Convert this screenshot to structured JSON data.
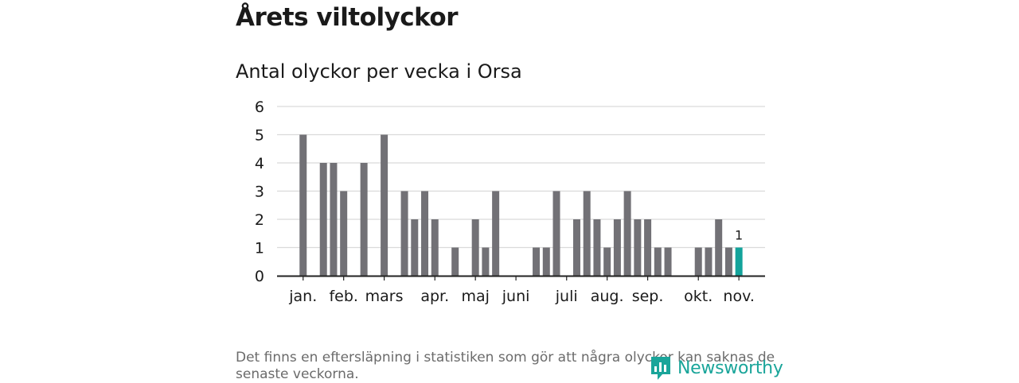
{
  "header": {
    "title": "Årets viltolyckor",
    "subtitle": "Antal olyckor per vecka i Orsa"
  },
  "footnote": "Det finns en eftersläpning i statistiken som gör att några olyckor kan saknas de senaste veckorna.",
  "brand": {
    "name": "Newsworthy"
  },
  "colors": {
    "bar": "#727176",
    "highlight": "#13a39b",
    "grid": "#dadada",
    "axis": "#222222"
  },
  "chart_data": {
    "type": "bar",
    "title": "Antal olyckor per vecka i Orsa",
    "xlabel": "",
    "ylabel": "",
    "ylim": [
      0,
      6
    ],
    "yticks": [
      0,
      1,
      2,
      3,
      4,
      5,
      6
    ],
    "weeks": [
      1,
      2,
      3,
      4,
      5,
      6,
      7,
      8,
      9,
      10,
      11,
      12,
      13,
      14,
      15,
      16,
      17,
      18,
      19,
      20,
      21,
      22,
      23,
      24,
      25,
      26,
      27,
      28,
      29,
      30,
      31,
      32,
      33,
      34,
      35,
      36,
      37,
      38,
      39,
      40,
      41,
      42,
      43,
      44,
      45,
      46
    ],
    "values": [
      0,
      0,
      5,
      0,
      4,
      4,
      3,
      0,
      4,
      0,
      5,
      0,
      3,
      2,
      3,
      2,
      0,
      1,
      0,
      2,
      1,
      3,
      0,
      0,
      0,
      1,
      1,
      3,
      0,
      2,
      3,
      2,
      1,
      2,
      3,
      2,
      2,
      1,
      1,
      0,
      0,
      1,
      1,
      2,
      1,
      1
    ],
    "highlight_week": 46,
    "highlight_label": "1",
    "month_ticks": [
      {
        "label": "jan.",
        "week": 3
      },
      {
        "label": "feb.",
        "week": 7
      },
      {
        "label": "mars",
        "week": 11
      },
      {
        "label": "apr.",
        "week": 16
      },
      {
        "label": "maj",
        "week": 20
      },
      {
        "label": "juni",
        "week": 24
      },
      {
        "label": "juli",
        "week": 29
      },
      {
        "label": "aug.",
        "week": 33
      },
      {
        "label": "sep.",
        "week": 37
      },
      {
        "label": "okt.",
        "week": 42
      },
      {
        "label": "nov.",
        "week": 46
      }
    ]
  }
}
